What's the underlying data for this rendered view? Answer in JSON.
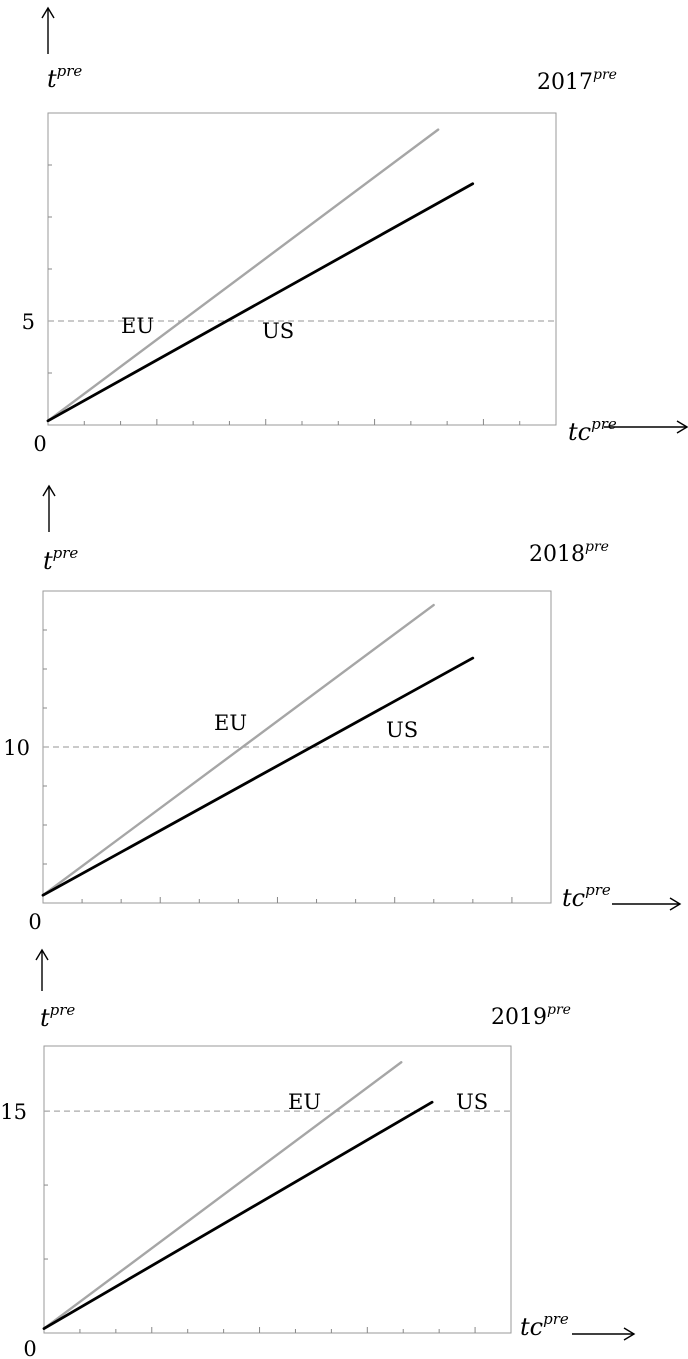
{
  "chart_data": [
    {
      "type": "line",
      "title": "2017",
      "title_superscript": "pre",
      "xlabel": "tc",
      "xlabel_superscript": "pre",
      "ylabel": "t",
      "ylabel_superscript": "pre",
      "origin_label": "0",
      "grid": false,
      "yticks": [
        5
      ],
      "yticks_minor_step": 2.5,
      "xticks_minor_count": 14,
      "reference_line": {
        "y": 5,
        "style": "dashed",
        "color": "#aaaaaa"
      },
      "xlim": [
        0,
        100
      ],
      "ylim": [
        0,
        15
      ],
      "series": [
        {
          "name": "EU",
          "color": "#a6a6a6",
          "points": [
            [
              0,
              0.2
            ],
            [
              76.8,
              14.2
            ]
          ]
        },
        {
          "name": "US",
          "color": "#000000",
          "points": [
            [
              0,
              0.2
            ],
            [
              83.6,
              11.6
            ]
          ]
        }
      ]
    },
    {
      "type": "line",
      "title": "2018",
      "title_superscript": "pre",
      "xlabel": "tc",
      "xlabel_superscript": "pre",
      "ylabel": "t",
      "ylabel_superscript": "pre",
      "origin_label": "0",
      "grid": false,
      "yticks": [
        10
      ],
      "yticks_minor_step": 2.5,
      "xticks_minor_count": 13,
      "reference_line": {
        "y": 10,
        "style": "dashed",
        "color": "#aaaaaa"
      },
      "xlim": [
        0,
        100
      ],
      "ylim": [
        0,
        20
      ],
      "series": [
        {
          "name": "EU",
          "color": "#a6a6a6",
          "points": [
            [
              0,
              0.5
            ],
            [
              76.9,
              19.1
            ]
          ]
        },
        {
          "name": "US",
          "color": "#000000",
          "points": [
            [
              0,
              0.5
            ],
            [
              84.6,
              15.7
            ]
          ]
        }
      ]
    },
    {
      "type": "line",
      "title": "2019",
      "title_superscript": "pre",
      "xlabel": "tc",
      "xlabel_superscript": "pre",
      "ylabel": "t",
      "ylabel_superscript": "pre",
      "origin_label": "0",
      "grid": false,
      "yticks": [
        15
      ],
      "yticks_minor_step": 5,
      "xticks_minor_count": 13,
      "reference_line": {
        "y": 15,
        "style": "dashed",
        "color": "#aaaaaa"
      },
      "xlim": [
        0,
        100
      ],
      "ylim": [
        0,
        19.4
      ],
      "series": [
        {
          "name": "EU",
          "color": "#a6a6a6",
          "points": [
            [
              0,
              0.3
            ],
            [
              76.5,
              18.3
            ]
          ]
        },
        {
          "name": "US",
          "color": "#000000",
          "points": [
            [
              0,
              0.3
            ],
            [
              83.1,
              15.6
            ]
          ]
        }
      ]
    }
  ]
}
